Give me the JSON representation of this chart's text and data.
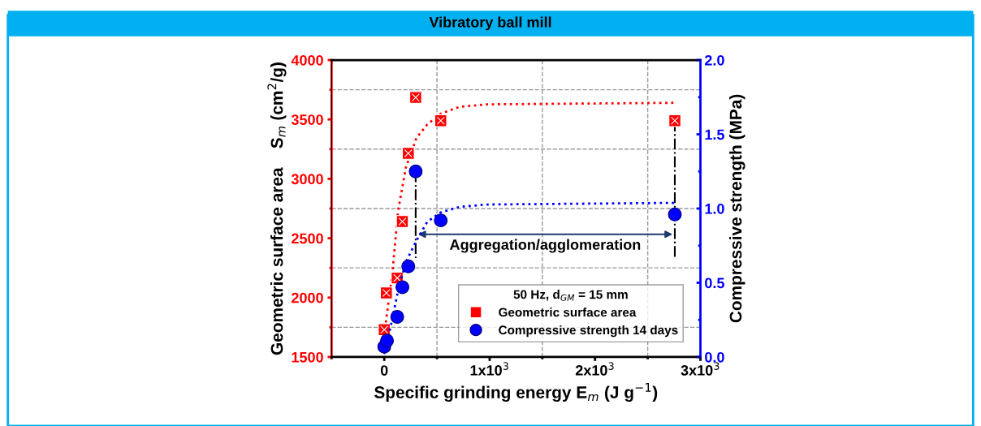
{
  "chart_data": {
    "type": "scatter",
    "title": "Vibratory ball mill",
    "xlabel": "Specific grinding energy E$_{m}$ (J g$^{−1}$)",
    "ylabel": "Geometric surface area    S$_{m}$ (cm$^{2}$/g)",
    "y2label": "Compressive strength (MPa)",
    "legend_title": "50 Hz, d$_{GM}$ = 15 mm",
    "legend": "bottom right",
    "grid": true,
    "xlim": [
      -500,
      3000
    ],
    "xticks": [
      {
        "value": -500,
        "label": null
      },
      0,
      {
        "value": 500,
        "label": null
      },
      {
        "value": 1000,
        "label": "1x10$^{3}$"
      },
      {
        "value": 1500,
        "label": null
      },
      {
        "value": 2000,
        "label": "2x10$^{3}$"
      },
      {
        "value": 2500,
        "label": null
      },
      {
        "value": 3000,
        "label": "3x10$^{3}$"
      }
    ],
    "ylim": [
      1500,
      4000
    ],
    "yticks": [
      1500,
      {
        "value": 1750,
        "label": null
      },
      2000,
      {
        "value": 2250,
        "label": null
      },
      2500,
      {
        "value": 2750,
        "label": null
      },
      3000,
      {
        "value": 3250,
        "label": null
      },
      3500,
      {
        "value": 3750,
        "label": null
      },
      4000
    ],
    "y2lim": [
      0,
      2
    ],
    "y2ticks": [
      {
        "value": 0,
        "label": "0.0"
      },
      {
        "value": 0.25,
        "label": null
      },
      {
        "value": 0.5,
        "label": "0.5"
      },
      {
        "value": 0.75,
        "label": null
      },
      {
        "value": 1,
        "label": "1.0"
      },
      {
        "value": 1.25,
        "label": null
      },
      {
        "value": 1.5,
        "label": "1.5"
      },
      {
        "value": 1.75,
        "label": null
      },
      {
        "value": 2,
        "label": "2.0"
      }
    ],
    "series": [
      {
        "type": "line",
        "axis": "y",
        "color": "#ff0000",
        "line_style": "dotted",
        "marker": "none",
        "x": [
          0,
          77,
          131,
          205,
          305,
          408,
          536,
          715,
          972,
          2757
        ],
        "values": [
          1690,
          2206,
          2730,
          3094,
          3344,
          3458,
          3549,
          3606,
          3627,
          3640
        ]
      },
      {
        "type": "line",
        "axis": "y2",
        "color": "#0000ff",
        "line_style": "dotted",
        "marker": "none",
        "x": [
          0,
          77,
          128,
          205,
          305,
          408,
          536,
          715,
          972,
          2757
        ],
        "values": [
          0.02,
          0.257,
          0.437,
          0.639,
          0.783,
          0.911,
          0.974,
          1.011,
          1.027,
          1.038
        ]
      },
      {
        "name": "Geometric surface area",
        "axis": "y",
        "color": "#ff0000",
        "marker": "square",
        "x": [
          0,
          20,
          123,
          172,
          228,
          298,
          536,
          2757
        ],
        "values": [
          1730,
          2040,
          2165,
          2640,
          3215,
          3685,
          3490,
          3490
        ]
      },
      {
        "name": "Compressive strength 14 days",
        "axis": "y2",
        "color": "#0000ff",
        "marker": "circle",
        "x": [
          0,
          26,
          123,
          172,
          228,
          298,
          536,
          2757
        ],
        "values": [
          0.07,
          0.11,
          0.27,
          0.47,
          0.61,
          1.25,
          0.92,
          0.96
        ]
      }
    ],
    "annotations": [
      {
        "text": "Aggregation/agglomeration",
        "x": 298,
        "y": 2533
      }
    ]
  }
}
